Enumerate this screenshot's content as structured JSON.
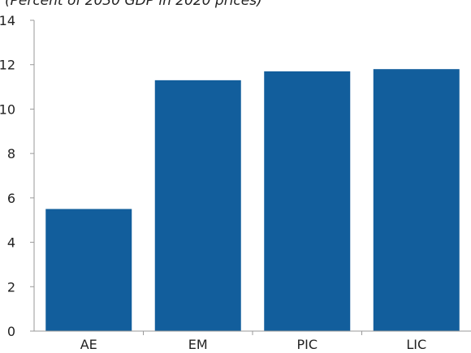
{
  "chart_data": {
    "type": "bar",
    "subtitle": "(Percent of 2030 GDP in 2020 prices)",
    "categories": [
      "AE",
      "EM",
      "PIC",
      "LIC"
    ],
    "values": [
      5.5,
      11.3,
      11.7,
      11.8
    ],
    "ylim": [
      0,
      14
    ],
    "yticks": [
      0,
      2,
      4,
      6,
      8,
      10,
      12,
      14
    ],
    "bar_color": "#125e9c",
    "axis_color": "#999999",
    "grid": false,
    "legend": "none"
  }
}
